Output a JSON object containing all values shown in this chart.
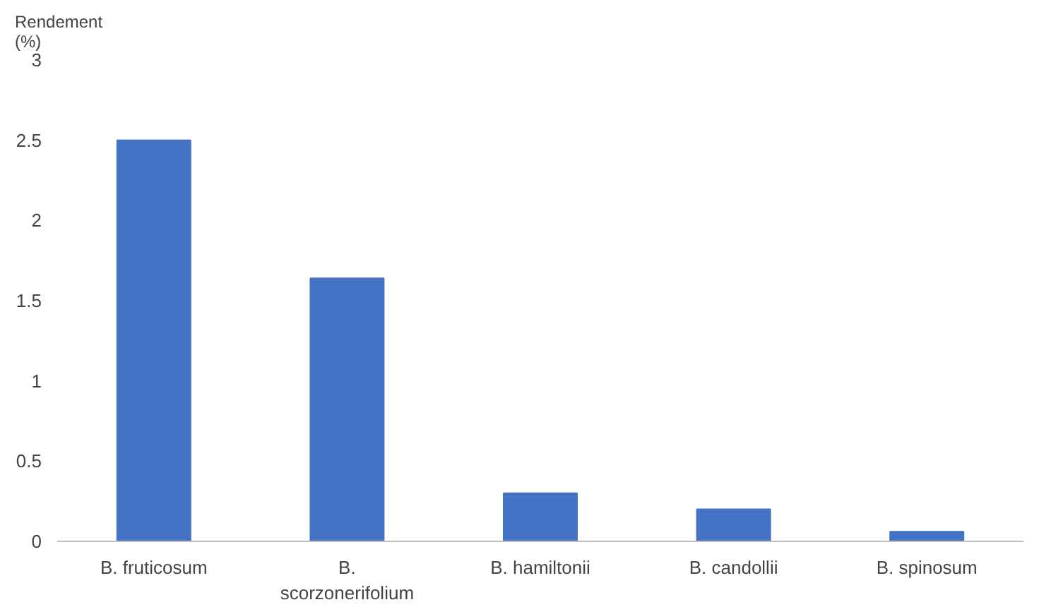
{
  "chart_data": {
    "type": "bar",
    "ylabel": "Rendement (%)",
    "categories": [
      "B. fruticosum",
      "B. scorzonerifolium",
      "B. hamiltonii",
      "B. candollii",
      "B. spinosum"
    ],
    "values": [
      2.5,
      1.64,
      0.3,
      0.2,
      0.06
    ],
    "color": "#4472c4",
    "ylim": [
      0,
      3
    ],
    "yticks": [
      0,
      0.5,
      1,
      1.5,
      2,
      2.5,
      3
    ],
    "grid": false
  }
}
